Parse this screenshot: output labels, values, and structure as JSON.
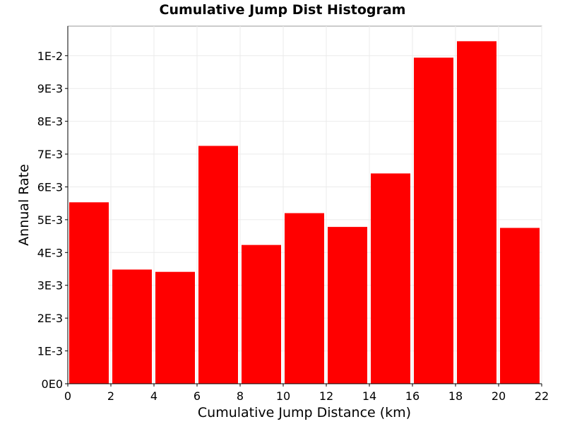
{
  "chart_data": {
    "type": "bar",
    "title": "Cumulative Jump Dist Histogram",
    "xlabel": "Cumulative Jump Distance (km)",
    "ylabel": "Annual Rate",
    "xlim": [
      0,
      22
    ],
    "ylim": [
      0,
      0.0109
    ],
    "bar_color": "#ff0000",
    "grid": true,
    "x_ticks": [
      0,
      2,
      4,
      6,
      8,
      10,
      12,
      14,
      16,
      18,
      20,
      22
    ],
    "x_tick_labels": [
      "0",
      "2",
      "4",
      "6",
      "8",
      "10",
      "12",
      "14",
      "16",
      "18",
      "20",
      "22"
    ],
    "y_ticks": [
      0,
      0.001,
      0.002,
      0.003,
      0.004,
      0.005,
      0.006,
      0.007,
      0.008,
      0.009,
      0.01
    ],
    "y_tick_labels": [
      "0E0",
      "1E-3",
      "2E-3",
      "3E-3",
      "4E-3",
      "5E-3",
      "6E-3",
      "7E-3",
      "8E-3",
      "9E-3",
      "1E-2"
    ],
    "bins": [
      {
        "x0": 0,
        "x1": 2,
        "value": 0.00553
      },
      {
        "x0": 2,
        "x1": 4,
        "value": 0.00348
      },
      {
        "x0": 4,
        "x1": 6,
        "value": 0.00341
      },
      {
        "x0": 6,
        "x1": 8,
        "value": 0.00725
      },
      {
        "x0": 8,
        "x1": 10,
        "value": 0.00423
      },
      {
        "x0": 10,
        "x1": 12,
        "value": 0.0052
      },
      {
        "x0": 12,
        "x1": 14,
        "value": 0.00478
      },
      {
        "x0": 14,
        "x1": 16,
        "value": 0.00641
      },
      {
        "x0": 16,
        "x1": 18,
        "value": 0.00994
      },
      {
        "x0": 18,
        "x1": 20,
        "value": 0.01044
      },
      {
        "x0": 20,
        "x1": 22,
        "value": 0.00475
      }
    ]
  }
}
